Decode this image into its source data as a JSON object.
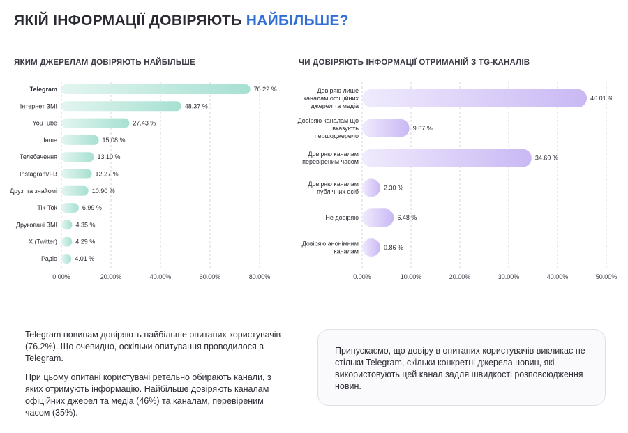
{
  "header": {
    "title_main": "ЯКІЙ ІНФОРМАЦІЇ ДОВІРЯЮТЬ ",
    "title_accent": "НАЙБІЛЬШЕ?",
    "accent_color": "#2f6fd6"
  },
  "chart_data": [
    {
      "type": "bar",
      "orientation": "horizontal",
      "title": "ЯКИМ ДЖЕРЕЛАМ ДОВІРЯЮТЬ НАЙБІЛЬШЕ",
      "categories": [
        "Telegram",
        "Інтернет ЗМІ",
        "YouTube",
        "Інше",
        "Телебачення",
        "Instagram/FB",
        "Друзі та знайомі",
        "Tik-Tok",
        "Друковані ЗМІ",
        "X (Twitter)",
        "Радіо"
      ],
      "values": [
        76.22,
        48.37,
        27.43,
        15.08,
        13.1,
        12.27,
        10.9,
        6.99,
        4.35,
        4.29,
        4.01
      ],
      "value_labels": [
        "76.22 %",
        "48.37 %",
        "27.43 %",
        "15.08 %",
        "13.10 %",
        "12.27 %",
        "10.90 %",
        "6.99 %",
        "4.35 %",
        "4.29 %",
        "4.01 %"
      ],
      "xlim": [
        0,
        80
      ],
      "x_ticks": [
        "0.00%",
        "20.00%",
        "40.00%",
        "60.00%",
        "80.00%"
      ],
      "grid": true,
      "bar_color": "#b9e6da"
    },
    {
      "type": "bar",
      "orientation": "horizontal",
      "title": "ЧИ ДОВІРЯЮТЬ ІНФОРМАЦІЇ ОТРИМАНІЙ З TG-КАНАЛІВ",
      "categories": [
        [
          "Довіряю лише",
          "каналам офіційних",
          "джерел та медіа"
        ],
        [
          "Довіряю каналам що",
          "вказують",
          "першоджерело"
        ],
        [
          "Довіряю каналам",
          "перевіреним часом"
        ],
        [
          "Довіряю каналам",
          "публічних осіб"
        ],
        [
          "Не довіряю"
        ],
        [
          "Довіряю анонімним",
          "каналам"
        ]
      ],
      "values": [
        46.01,
        9.67,
        34.69,
        2.3,
        6.48,
        0.86
      ],
      "value_labels": [
        "46.01 %",
        "9.67 %",
        "34.69 %",
        "2.30 %",
        "6.48 %",
        "0.86 %"
      ],
      "xlim": [
        0,
        50
      ],
      "x_ticks": [
        "0.00%",
        "10.00%",
        "20.00%",
        "30.00%",
        "40.00%",
        "50.00%"
      ],
      "grid": true,
      "bar_color": "#ddd2fa"
    }
  ],
  "notes": {
    "left_p1": "Telegram новинам довіряють найбільше опитаних користувачів (76.2%). Що очевидно, оскільки опитування проводилося в Telegram.",
    "left_p2": "При цьому опитані користувачі ретельно обирають канали, з яких отримують інформацію. Найбільше довіряють каналам офіційних джерел та медіа (46%) та каналам, перевіреним часом (35%).",
    "callout": "Припускаємо, що довіру в опитаних користувачів викликає не стільки Telegram, скільки конкретні джерела новин, які використовують цей канал задля швидкості розповсюдження новин."
  }
}
